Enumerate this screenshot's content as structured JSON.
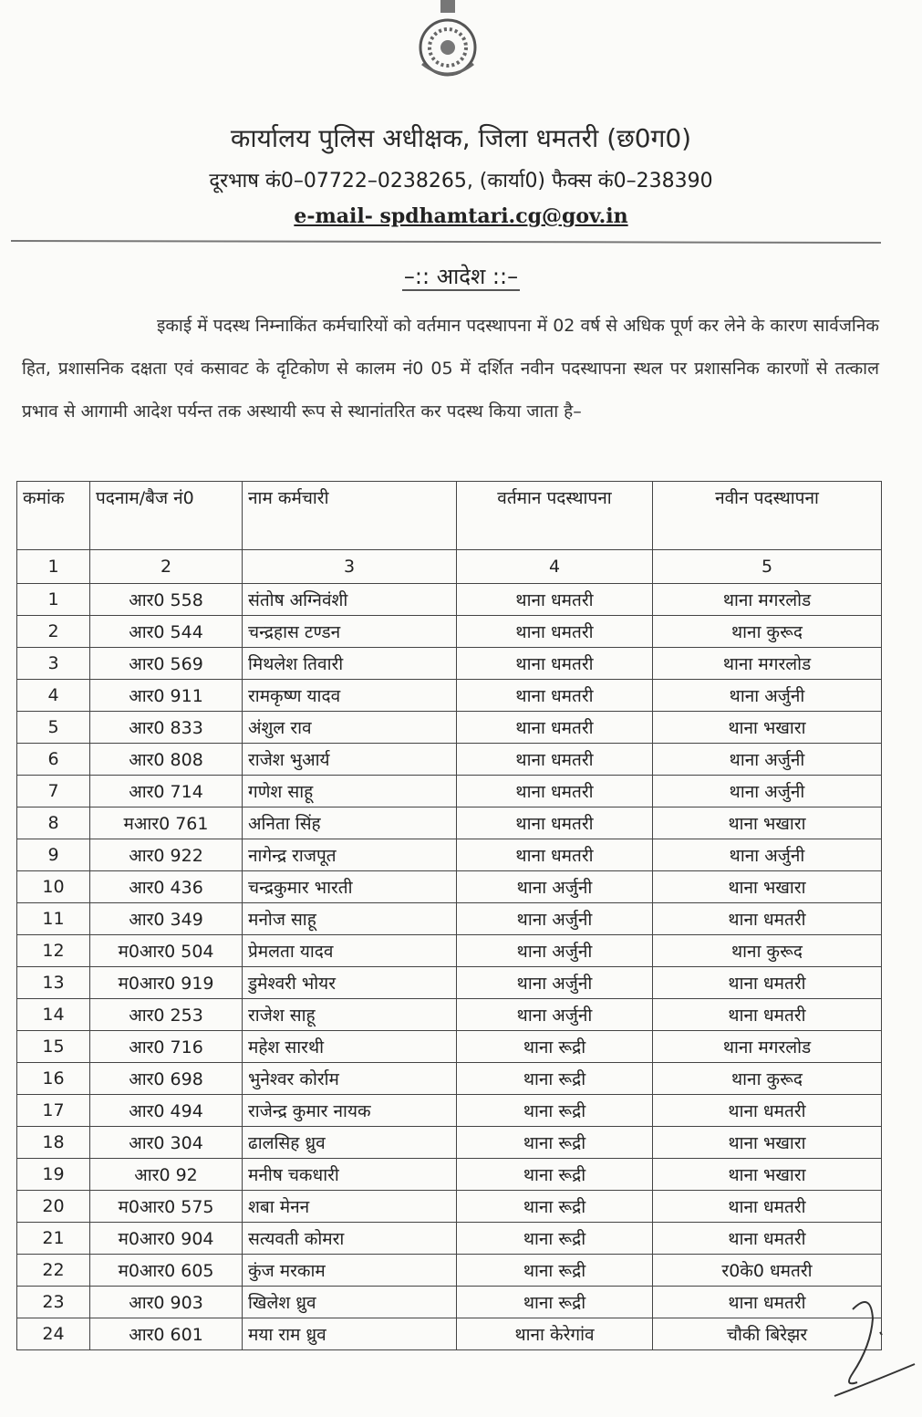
{
  "header": {
    "title": "कार्यालय पुलिस अधीक्षक, जिला धमतरी (छ0ग0)",
    "phone": "दूरभाष कं0–07722–0238265, (कार्या0) फैक्स कं0–238390",
    "email": "e-mail- spdhamtari.cg@gov.in"
  },
  "order_heading": "–:: आदेश ::–",
  "paragraph": "इकाई में पदस्थ निम्नाकिंत कर्मचारियों को वर्तमान पदस्थापना में 02 वर्ष से अधिक पूर्ण कर लेने के कारण सार्वजनिक हित, प्रशासनिक दक्षता एवं कसावट के दृटिकोण से कालम नं0 05 में दर्शित नवीन पदस्थापना स्थल पर प्रशासनिक कारणों से तत्काल प्रभाव से आगामी आदेश पर्यन्त तक अस्थायी रूप से स्थानांतरित कर पदस्थ किया जाता है–",
  "table": {
    "headers": [
      "कमांक",
      "पदनाम/बैज नं0",
      "नाम कर्मचारी",
      "वर्तमान पदस्थापना",
      "नवीन पदस्थापना"
    ],
    "column_numbers": [
      "1",
      "2",
      "3",
      "4",
      "5"
    ],
    "rows": [
      [
        "1",
        "आर0 558",
        "संतोष अग्निवंशी",
        "थाना धमतरी",
        "थाना मगरलोड"
      ],
      [
        "2",
        "आर0 544",
        "चन्द्रहास टण्डन",
        "थाना धमतरी",
        "थाना कुरूद"
      ],
      [
        "3",
        "आर0 569",
        "मिथलेश तिवारी",
        "थाना धमतरी",
        "थाना मगरलोड"
      ],
      [
        "4",
        "आर0 911",
        "रामकृष्ण यादव",
        "थाना धमतरी",
        "थाना अर्जुनी"
      ],
      [
        "5",
        "आर0 833",
        "अंशुल राव",
        "थाना धमतरी",
        "थाना भखारा"
      ],
      [
        "6",
        "आर0 808",
        "राजेश भुआर्य",
        "थाना धमतरी",
        "थाना अर्जुनी"
      ],
      [
        "7",
        "आर0 714",
        "गणेश साहू",
        "थाना धमतरी",
        "थाना अर्जुनी"
      ],
      [
        "8",
        "मआर0 761",
        "अनिता सिंह",
        "थाना धमतरी",
        "थाना भखारा"
      ],
      [
        "9",
        "आर0 922",
        "नागेन्द्र राजपूत",
        "थाना धमतरी",
        "थाना अर्जुनी"
      ],
      [
        "10",
        "आर0 436",
        "चन्द्रकुमार भारती",
        "थाना अर्जुनी",
        "थाना भखारा"
      ],
      [
        "11",
        "आर0 349",
        "मनोज साहू",
        "थाना अर्जुनी",
        "थाना धमतरी"
      ],
      [
        "12",
        "म0आर0 504",
        "प्रेमलता यादव",
        "थाना अर्जुनी",
        "थाना कुरूद"
      ],
      [
        "13",
        "म0आर0 919",
        "डुमेश्वरी भोयर",
        "थाना अर्जुनी",
        "थाना धमतरी"
      ],
      [
        "14",
        "आर0 253",
        "राजेश साहू",
        "थाना अर्जुनी",
        "थाना धमतरी"
      ],
      [
        "15",
        "आर0 716",
        "महेश सारथी",
        "थाना रूद्री",
        "थाना मगरलोड"
      ],
      [
        "16",
        "आर0 698",
        "भुनेश्वर कोर्राम",
        "थाना रूद्री",
        "थाना कुरूद"
      ],
      [
        "17",
        "आर0 494",
        "राजेन्द्र कुमार नायक",
        "थाना रूद्री",
        "थाना धमतरी"
      ],
      [
        "18",
        "आर0 304",
        "ढालसिह ध्रुव",
        "थाना रूद्री",
        "थाना भखारा"
      ],
      [
        "19",
        "आर0 92",
        "मनीष चकधारी",
        "थाना रूद्री",
        "थाना भखारा"
      ],
      [
        "20",
        "म0आर0 575",
        "शबा मेनन",
        "थाना रूद्री",
        "थाना धमतरी"
      ],
      [
        "21",
        "म0आर0 904",
        "सत्यवती कोमरा",
        "थाना रूद्री",
        "थाना धमतरी"
      ],
      [
        "22",
        "म0आर0 605",
        "कुंज मरकाम",
        "थाना रूद्री",
        "र0के0 धमतरी"
      ],
      [
        "23",
        "आर0 903",
        "खिलेश ध्रुव",
        "थाना रूद्री",
        "थाना धमतरी"
      ],
      [
        "24",
        "आर0 601",
        "मया राम ध्रुव",
        "थाना केरेगांव",
        "चौकी बिरेझर"
      ]
    ]
  }
}
